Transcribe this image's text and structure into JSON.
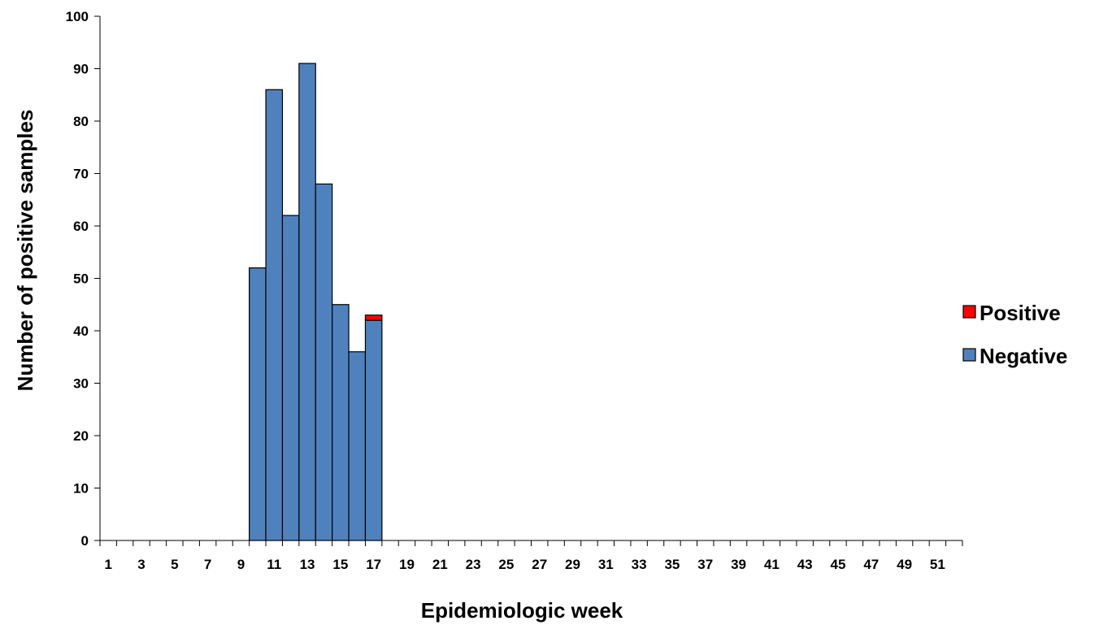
{
  "chart_data": {
    "type": "bar",
    "stacked": true,
    "xlabel": "Epidemiologic week",
    "ylabel": "Number of positive samples",
    "ylim": [
      0,
      100
    ],
    "yticks": [
      0,
      10,
      20,
      30,
      40,
      50,
      60,
      70,
      80,
      90,
      100
    ],
    "weeks": [
      1,
      2,
      3,
      4,
      5,
      6,
      7,
      8,
      9,
      10,
      11,
      12,
      13,
      14,
      15,
      16,
      17,
      18,
      19,
      20,
      21,
      22,
      23,
      24,
      25,
      26,
      27,
      28,
      29,
      30,
      31,
      32,
      33,
      34,
      35,
      36,
      37,
      38,
      39,
      40,
      41,
      42,
      43,
      44,
      45,
      46,
      47,
      48,
      49,
      50,
      51,
      52
    ],
    "xtick_labels": [
      "1",
      "3",
      "5",
      "7",
      "9",
      "11",
      "13",
      "15",
      "17",
      "19",
      "21",
      "23",
      "25",
      "27",
      "29",
      "31",
      "33",
      "35",
      "37",
      "39",
      "41",
      "43",
      "45",
      "47",
      "49",
      "51"
    ],
    "series": [
      {
        "name": "Negative",
        "color": "#4F81BD",
        "values": [
          0,
          0,
          0,
          0,
          0,
          0,
          0,
          0,
          0,
          52,
          86,
          62,
          91,
          68,
          45,
          36,
          42,
          0,
          0,
          0,
          0,
          0,
          0,
          0,
          0,
          0,
          0,
          0,
          0,
          0,
          0,
          0,
          0,
          0,
          0,
          0,
          0,
          0,
          0,
          0,
          0,
          0,
          0,
          0,
          0,
          0,
          0,
          0,
          0,
          0,
          0,
          0
        ]
      },
      {
        "name": "Positive",
        "color": "#FF0000",
        "values": [
          0,
          0,
          0,
          0,
          0,
          0,
          0,
          0,
          0,
          0,
          0,
          0,
          0,
          0,
          0,
          0,
          1,
          0,
          0,
          0,
          0,
          0,
          0,
          0,
          0,
          0,
          0,
          0,
          0,
          0,
          0,
          0,
          0,
          0,
          0,
          0,
          0,
          0,
          0,
          0,
          0,
          0,
          0,
          0,
          0,
          0,
          0,
          0,
          0,
          0,
          0,
          0
        ]
      }
    ],
    "legend_order": [
      "Positive",
      "Negative"
    ],
    "legend_position": "right",
    "grid": false
  }
}
